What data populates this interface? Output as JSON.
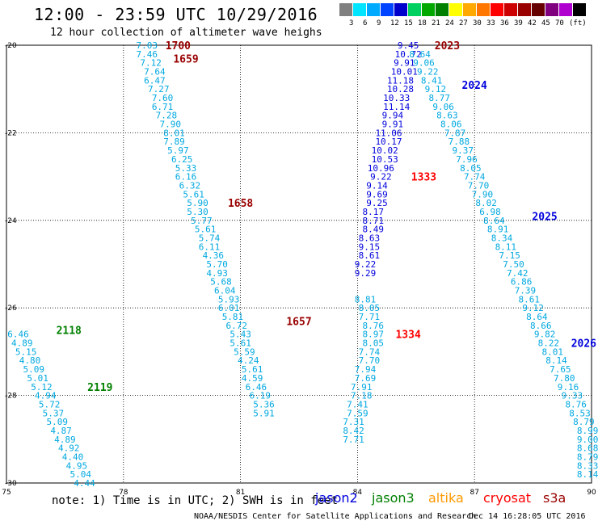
{
  "header": {
    "title": "12:00 - 23:59 UTC 10/29/2016",
    "subtitle": "12 hour collection of altimeter wave heighs"
  },
  "color_scale": {
    "colors": [
      "#808080",
      "#00e5ff",
      "#00aaff",
      "#0044ff",
      "#0000cc",
      "#00d060",
      "#00a800",
      "#008000",
      "#ffff00",
      "#ffaa00",
      "#ff7700",
      "#ff0000",
      "#cc0000",
      "#990000",
      "#660000",
      "#800080",
      "#b000d0",
      "#000000"
    ],
    "labels": [
      "3",
      "6",
      "9",
      "12",
      "15",
      "18",
      "21",
      "24",
      "27",
      "30",
      "33",
      "36",
      "39",
      "42",
      "45",
      "70",
      "(ft)"
    ]
  },
  "chart_data": {
    "type": "scatter",
    "xlim": [
      75,
      90
    ],
    "ylim": [
      -30,
      -20
    ],
    "x_ticks": [
      "75",
      "78",
      "81",
      "84",
      "87",
      "90"
    ],
    "y_ticks": [
      "-20",
      "-22",
      "-24",
      "-26",
      "-28",
      "-30"
    ],
    "colors": {
      "jason2": "#0000dd",
      "jason3": "#008000",
      "altika": "#ff9900",
      "cryosat": "#ff0000",
      "s3a": "#990000",
      "cyan": "#00a8e0"
    },
    "tracks": [
      {
        "color": "cyan",
        "points": [
          [
            75.3,
            -26.6,
            "6.46"
          ],
          [
            75.4,
            -26.8,
            "4.89"
          ],
          [
            75.5,
            -27.0,
            "5.15"
          ],
          [
            75.6,
            -27.2,
            "4.80"
          ],
          [
            75.7,
            -27.4,
            "5.09"
          ],
          [
            75.8,
            -27.6,
            "5.01"
          ],
          [
            75.9,
            -27.8,
            "5.12"
          ],
          [
            76.0,
            -28.0,
            "4.94"
          ],
          [
            76.1,
            -28.2,
            "5.72"
          ],
          [
            76.2,
            -28.4,
            "5.37"
          ],
          [
            76.3,
            -28.6,
            "5.09"
          ],
          [
            76.4,
            -28.8,
            "4.87"
          ],
          [
            76.5,
            -29.0,
            "4.89"
          ],
          [
            76.6,
            -29.2,
            "4.92"
          ],
          [
            76.7,
            -29.4,
            "4.40"
          ],
          [
            76.8,
            -29.6,
            "4.95"
          ],
          [
            76.9,
            -29.8,
            "5.04"
          ],
          [
            77.0,
            -30.0,
            "4.44"
          ]
        ]
      },
      {
        "color": "cyan",
        "points": [
          [
            78.6,
            -20.0,
            "7.03"
          ],
          [
            78.6,
            -20.2,
            "7.46"
          ],
          [
            78.7,
            -20.4,
            "7.12"
          ],
          [
            78.8,
            -20.6,
            "7.64"
          ],
          [
            78.8,
            -20.8,
            "6.47"
          ],
          [
            78.9,
            -21.0,
            "7.27"
          ],
          [
            79.0,
            -21.2,
            "7.60"
          ],
          [
            79.0,
            -21.4,
            "6.71"
          ],
          [
            79.1,
            -21.6,
            "7.28"
          ],
          [
            79.2,
            -21.8,
            "7.90"
          ],
          [
            79.3,
            -22.0,
            "8.01"
          ],
          [
            79.3,
            -22.2,
            "7.89"
          ],
          [
            79.4,
            -22.4,
            "5.97"
          ],
          [
            79.5,
            -22.6,
            "6.25"
          ],
          [
            79.6,
            -22.8,
            "5.33"
          ],
          [
            79.6,
            -23.0,
            "6.16"
          ],
          [
            79.7,
            -23.2,
            "6.32"
          ],
          [
            79.8,
            -23.4,
            "5.61"
          ],
          [
            79.9,
            -23.6,
            "5.90"
          ],
          [
            79.9,
            -23.8,
            "5.30"
          ],
          [
            80.0,
            -24.0,
            "5.77"
          ],
          [
            80.1,
            -24.2,
            "5.61"
          ],
          [
            80.2,
            -24.4,
            "5.74"
          ],
          [
            80.2,
            -24.6,
            "6.11"
          ],
          [
            80.3,
            -24.8,
            "4.36"
          ],
          [
            80.4,
            -25.0,
            "5.70"
          ],
          [
            80.4,
            -25.2,
            "4.93"
          ],
          [
            80.5,
            -25.4,
            "5.68"
          ],
          [
            80.6,
            -25.6,
            "6.04"
          ],
          [
            80.7,
            -25.8,
            "5.93"
          ],
          [
            80.7,
            -26.0,
            "6.01"
          ],
          [
            80.8,
            -26.2,
            "5.81"
          ],
          [
            80.9,
            -26.4,
            "6.72"
          ],
          [
            81.0,
            -26.6,
            "5.43"
          ],
          [
            81.0,
            -26.8,
            "5.61"
          ],
          [
            81.1,
            -27.0,
            "5.59"
          ],
          [
            81.2,
            -27.2,
            "4.24"
          ],
          [
            81.3,
            -27.4,
            "5.61"
          ],
          [
            81.3,
            -27.6,
            "4.59"
          ],
          [
            81.4,
            -27.8,
            "6.46"
          ],
          [
            81.5,
            -28.0,
            "6.19"
          ],
          [
            81.6,
            -28.2,
            "5.36"
          ],
          [
            81.6,
            -28.4,
            "5.91"
          ]
        ]
      },
      {
        "color": "cyan",
        "points": [
          [
            84.2,
            -25.8,
            "8.81"
          ],
          [
            84.3,
            -26.0,
            "8.05"
          ],
          [
            84.3,
            -26.2,
            "7.71"
          ],
          [
            84.4,
            -26.4,
            "8.76"
          ],
          [
            84.4,
            -26.6,
            "8.97"
          ],
          [
            84.4,
            -26.8,
            "8.05"
          ],
          [
            84.3,
            -27.0,
            "7.74"
          ],
          [
            84.3,
            -27.2,
            "7.70"
          ],
          [
            84.2,
            -27.4,
            "7.94"
          ],
          [
            84.2,
            -27.6,
            "7.69"
          ],
          [
            84.1,
            -27.8,
            "7.91"
          ],
          [
            84.1,
            -28.0,
            "7.18"
          ],
          [
            84.0,
            -28.2,
            "7.41"
          ],
          [
            84.0,
            -28.4,
            "7.59"
          ],
          [
            83.9,
            -28.6,
            "7.31"
          ],
          [
            83.9,
            -28.8,
            "8.42"
          ],
          [
            83.9,
            -29.0,
            "7.71"
          ]
        ]
      },
      {
        "color": "jason2",
        "points": [
          [
            85.3,
            -20.0,
            "9.45"
          ],
          [
            85.3,
            -20.2,
            "10.72"
          ],
          [
            85.2,
            -20.4,
            "9.91"
          ],
          [
            85.2,
            -20.6,
            "10.01"
          ],
          [
            85.1,
            -20.8,
            "11.18"
          ],
          [
            85.1,
            -21.0,
            "10.28"
          ],
          [
            85.0,
            -21.2,
            "10.33"
          ],
          [
            85.0,
            -21.4,
            "11.14"
          ],
          [
            84.9,
            -21.6,
            "9.94"
          ],
          [
            84.9,
            -21.8,
            "9.91"
          ],
          [
            84.8,
            -22.0,
            "11.06"
          ],
          [
            84.8,
            -22.2,
            "10.17"
          ],
          [
            84.7,
            -22.4,
            "10.02"
          ],
          [
            84.7,
            -22.6,
            "10.53"
          ],
          [
            84.6,
            -22.8,
            "10.96"
          ],
          [
            84.6,
            -23.0,
            "9.22"
          ],
          [
            84.5,
            -23.2,
            "9.14"
          ],
          [
            84.5,
            -23.4,
            "9.69"
          ],
          [
            84.5,
            -23.6,
            "9.25"
          ],
          [
            84.4,
            -23.8,
            "8.17"
          ],
          [
            84.4,
            -24.0,
            "8.71"
          ],
          [
            84.4,
            -24.2,
            "8.49"
          ],
          [
            84.3,
            -24.4,
            "8.63"
          ],
          [
            84.3,
            -24.6,
            "9.15"
          ],
          [
            84.3,
            -24.8,
            "8.61"
          ],
          [
            84.2,
            -25.0,
            "9.22"
          ],
          [
            84.2,
            -25.2,
            "9.29"
          ]
        ]
      },
      {
        "color": "cyan",
        "points": [
          [
            85.6,
            -20.2,
            "8.64"
          ],
          [
            85.7,
            -20.4,
            "9.06"
          ],
          [
            85.8,
            -20.6,
            "9.22"
          ],
          [
            85.9,
            -20.8,
            "8.41"
          ],
          [
            86.0,
            -21.0,
            "9.12"
          ],
          [
            86.1,
            -21.2,
            "8.77"
          ],
          [
            86.2,
            -21.4,
            "9.06"
          ],
          [
            86.3,
            -21.6,
            "8.63"
          ],
          [
            86.4,
            -21.8,
            "8.06"
          ],
          [
            86.5,
            -22.0,
            "7.87"
          ],
          [
            86.6,
            -22.2,
            "7.88"
          ],
          [
            86.7,
            -22.4,
            "9.37"
          ],
          [
            86.8,
            -22.6,
            "7.96"
          ],
          [
            86.9,
            -22.8,
            "8.05"
          ],
          [
            87.0,
            -23.0,
            "7.74"
          ],
          [
            87.1,
            -23.2,
            "7.70"
          ],
          [
            87.2,
            -23.4,
            "7.90"
          ],
          [
            87.3,
            -23.6,
            "8.02"
          ],
          [
            87.4,
            -23.8,
            "6.98"
          ],
          [
            87.5,
            -24.0,
            "8.64"
          ],
          [
            87.6,
            -24.2,
            "8.91"
          ],
          [
            87.7,
            -24.4,
            "8.34"
          ],
          [
            87.8,
            -24.6,
            "8.11"
          ],
          [
            87.9,
            -24.8,
            "7.15"
          ],
          [
            88.0,
            -25.0,
            "7.50"
          ],
          [
            88.1,
            -25.2,
            "7.42"
          ],
          [
            88.2,
            -25.4,
            "6.86"
          ],
          [
            88.3,
            -25.6,
            "7.39"
          ],
          [
            88.4,
            -25.8,
            "8.61"
          ],
          [
            88.5,
            -26.0,
            "9.12"
          ],
          [
            88.6,
            -26.2,
            "8.64"
          ],
          [
            88.7,
            -26.4,
            "8.66"
          ],
          [
            88.8,
            -26.6,
            "9.82"
          ],
          [
            88.9,
            -26.8,
            "8.22"
          ],
          [
            89.0,
            -27.0,
            "8.01"
          ],
          [
            89.1,
            -27.2,
            "8.14"
          ],
          [
            89.2,
            -27.4,
            "7.65"
          ],
          [
            89.3,
            -27.6,
            "7.80"
          ],
          [
            89.4,
            -27.8,
            "9.16"
          ],
          [
            89.5,
            -28.0,
            "9.33"
          ],
          [
            89.6,
            -28.2,
            "8.76"
          ],
          [
            89.7,
            -28.4,
            "8.53"
          ],
          [
            89.8,
            -28.6,
            "8.79"
          ],
          [
            89.9,
            -28.8,
            "8.99"
          ],
          [
            89.9,
            -29.0,
            "9.00"
          ],
          [
            89.9,
            -29.2,
            "8.68"
          ],
          [
            89.9,
            -29.4,
            "8.79"
          ],
          [
            89.9,
            -29.6,
            "8.33"
          ],
          [
            89.9,
            -29.8,
            "8.14"
          ]
        ]
      }
    ],
    "time_labels": [
      {
        "text": "1700",
        "x": 79.4,
        "y": -20.0,
        "color": "s3a"
      },
      {
        "text": "1659",
        "x": 79.6,
        "y": -20.3,
        "color": "s3a"
      },
      {
        "text": "1658",
        "x": 81.0,
        "y": -23.6,
        "color": "s3a"
      },
      {
        "text": "1657",
        "x": 82.5,
        "y": -26.3,
        "color": "s3a"
      },
      {
        "text": "2118",
        "x": 76.6,
        "y": -26.5,
        "color": "jason3"
      },
      {
        "text": "2119",
        "x": 77.4,
        "y": -27.8,
        "color": "jason3"
      },
      {
        "text": "2023",
        "x": 86.3,
        "y": -20.0,
        "color": "s3a"
      },
      {
        "text": "1333",
        "x": 85.7,
        "y": -23.0,
        "color": "cryosat"
      },
      {
        "text": "1334",
        "x": 85.3,
        "y": -26.6,
        "color": "cryosat"
      },
      {
        "text": "2024",
        "x": 87.0,
        "y": -20.9,
        "color": "jason2"
      },
      {
        "text": "2025",
        "x": 88.8,
        "y": -23.9,
        "color": "jason2"
      },
      {
        "text": "2026",
        "x": 89.8,
        "y": -26.8,
        "color": "jason2"
      }
    ]
  },
  "footer": {
    "note": "note: 1) Time is in UTC; 2) SWH is in feet",
    "legend": [
      {
        "name": "jason2",
        "color": "#0000dd"
      },
      {
        "name": "jason3",
        "color": "#008000"
      },
      {
        "name": "altika",
        "color": "#ff9900"
      },
      {
        "name": "cryosat",
        "color": "#ff0000"
      },
      {
        "name": "s3a",
        "color": "#990000"
      }
    ],
    "credit": "NOAA/NESDIS Center for Satellite Applications and Research",
    "generated": "Dec 14 16:28:05 UTC 2016"
  }
}
